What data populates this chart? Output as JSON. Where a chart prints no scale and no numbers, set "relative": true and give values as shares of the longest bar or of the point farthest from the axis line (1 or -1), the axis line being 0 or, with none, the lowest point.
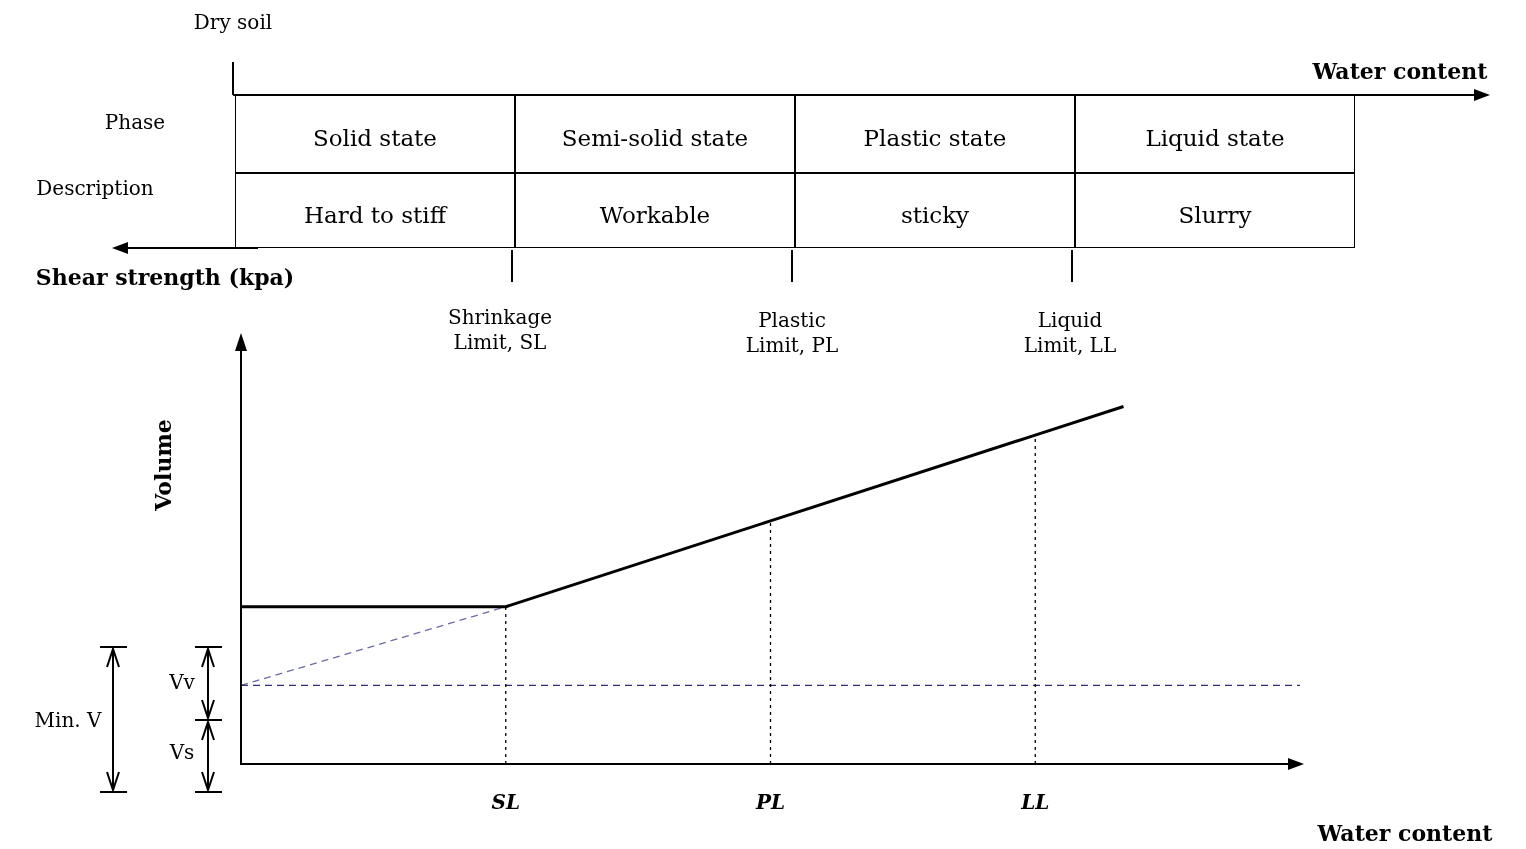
{
  "chart_data": {
    "type": "line",
    "relative": true,
    "xlabel": "Water content",
    "ylabel": "Volume",
    "categories": [
      null,
      null,
      null,
      "SL",
      null,
      null,
      "PL",
      null,
      null,
      "LL",
      null,
      null,
      null
    ],
    "legend": false,
    "grid": false,
    "marker": "none",
    "series": [
      {
        "color": "#000000",
        "values": [
          0.44,
          null,
          null,
          0.44,
          null,
          null,
          0.68,
          null,
          null,
          0.92,
          1,
          null,
          null
        ],
        "line_style": "solid"
      },
      {
        "color": "#6b6ba8",
        "values": [
          0.22,
          null,
          null,
          0.44,
          null,
          null,
          null,
          null,
          null,
          null,
          null,
          null,
          null
        ],
        "line_style": "dashed"
      }
    ],
    "ref_lines": [
      {
        "axis": "y",
        "value": 0.22,
        "color": "#2e2e7a",
        "line_style": "dashed"
      },
      {
        "axis": "x",
        "value": "SL",
        "color": "#000000",
        "line_style": "dotted"
      },
      {
        "axis": "x",
        "value": "PL",
        "color": "#000000",
        "line_style": "dotted"
      },
      {
        "axis": "x",
        "value": "LL",
        "color": "#000000",
        "line_style": "dotted"
      }
    ],
    "annotations": [
      "Dry soil",
      "Phase",
      "Description",
      "Solid state",
      "Semi-solid state",
      "Plastic state",
      "Liquid state",
      "Hard to stiff",
      "Workable",
      "sticky",
      "Slurry",
      "Water content",
      "Shear strength (kpa)",
      "Shrinkage Limit, SL",
      "Plastic Limit, PL",
      "Liquid Limit, LL",
      "Vv",
      "Vs",
      "Min. V"
    ]
  }
}
